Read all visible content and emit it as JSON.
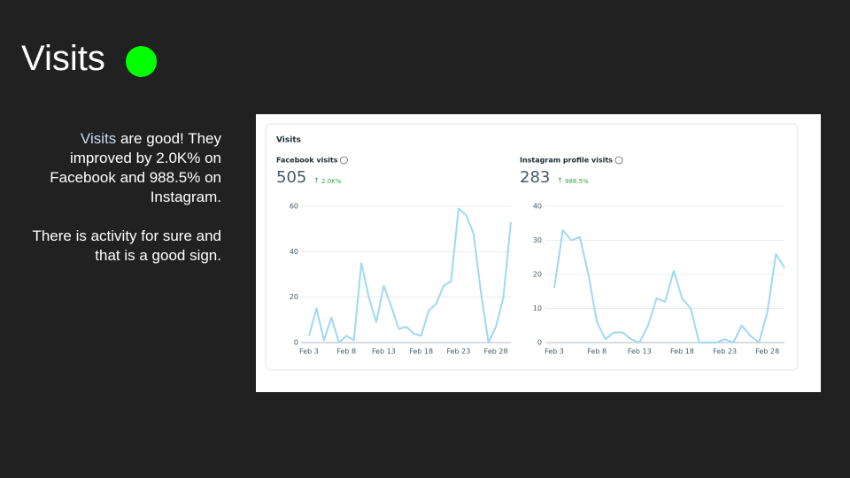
{
  "slide_title": "Visits",
  "notes": {
    "p1_highlight": "Visits",
    "p1_rest": " are good! They improved by 2.0K% on Facebook and 988.5% on Instagram.",
    "p2": "There is activity for sure and that is a good sign."
  },
  "panel_title": "Visits",
  "chart_data": [
    {
      "type": "line",
      "title": "Facebook visits",
      "total": "505",
      "change": "2.0K%",
      "color": "#9fd8f2",
      "categories": [
        "Feb 3",
        null,
        null,
        null,
        null,
        "Feb 8",
        null,
        null,
        null,
        null,
        "Feb 13",
        null,
        null,
        null,
        null,
        "Feb 18",
        null,
        null,
        null,
        null,
        "Feb 23",
        null,
        null,
        null,
        null,
        "Feb 28",
        null,
        null
      ],
      "values": [
        3,
        15,
        1,
        11,
        0,
        3,
        1,
        35,
        20,
        9,
        25,
        16,
        6,
        7,
        4,
        3,
        14,
        17,
        25,
        27,
        59,
        56,
        48,
        22,
        0,
        7,
        20,
        53
      ],
      "ylim": [
        0,
        60
      ],
      "yticks": [
        0,
        20,
        40,
        60
      ],
      "grid": true
    },
    {
      "type": "line",
      "title": "Instagram profile visits",
      "total": "283",
      "change": "988.5%",
      "color": "#9fd8f2",
      "categories": [
        "Feb 3",
        null,
        null,
        null,
        null,
        "Feb 8",
        null,
        null,
        null,
        null,
        "Feb 13",
        null,
        null,
        null,
        null,
        "Feb 18",
        null,
        null,
        null,
        null,
        "Feb 23",
        null,
        null,
        null,
        null,
        "Feb 28",
        null,
        null
      ],
      "values": [
        16,
        33,
        30,
        31,
        20,
        6,
        1,
        3,
        3,
        1,
        0,
        5,
        13,
        12,
        21,
        13,
        10,
        0,
        0,
        0,
        1,
        0,
        5,
        2,
        0,
        9,
        26,
        22
      ],
      "ylim": [
        0,
        40
      ],
      "yticks": [
        0,
        10,
        20,
        30,
        40
      ],
      "grid": true
    }
  ]
}
